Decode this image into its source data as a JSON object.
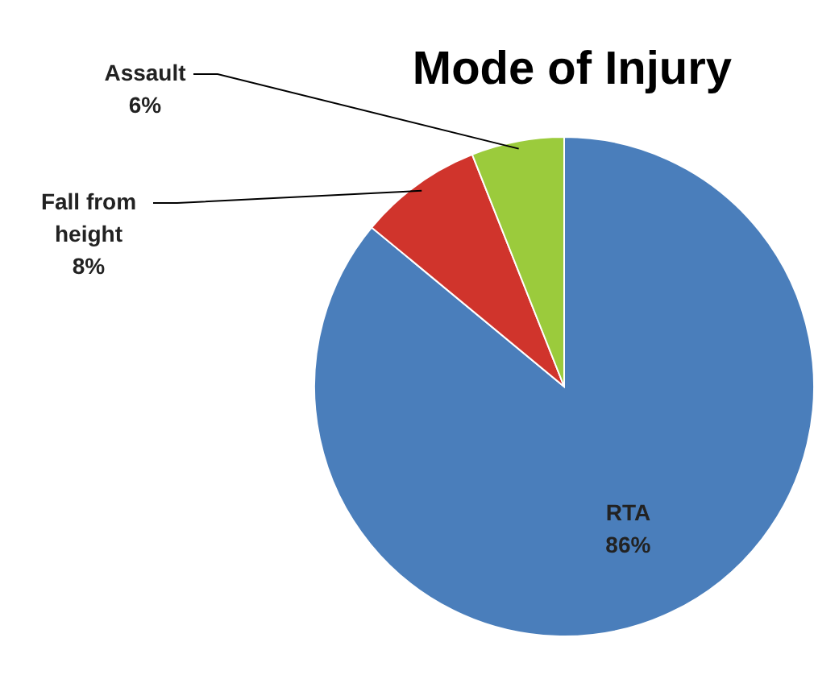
{
  "chart_data": {
    "type": "pie",
    "title": "Mode of Injury",
    "categories": [
      "RTA",
      "Fall from height",
      "Assault"
    ],
    "values": [
      86,
      8,
      6
    ],
    "colors": [
      "#4a7ebb",
      "#d0342c",
      "#9bcb3c"
    ],
    "value_labels": [
      "86%",
      "8%",
      "6%"
    ],
    "legend": false
  }
}
